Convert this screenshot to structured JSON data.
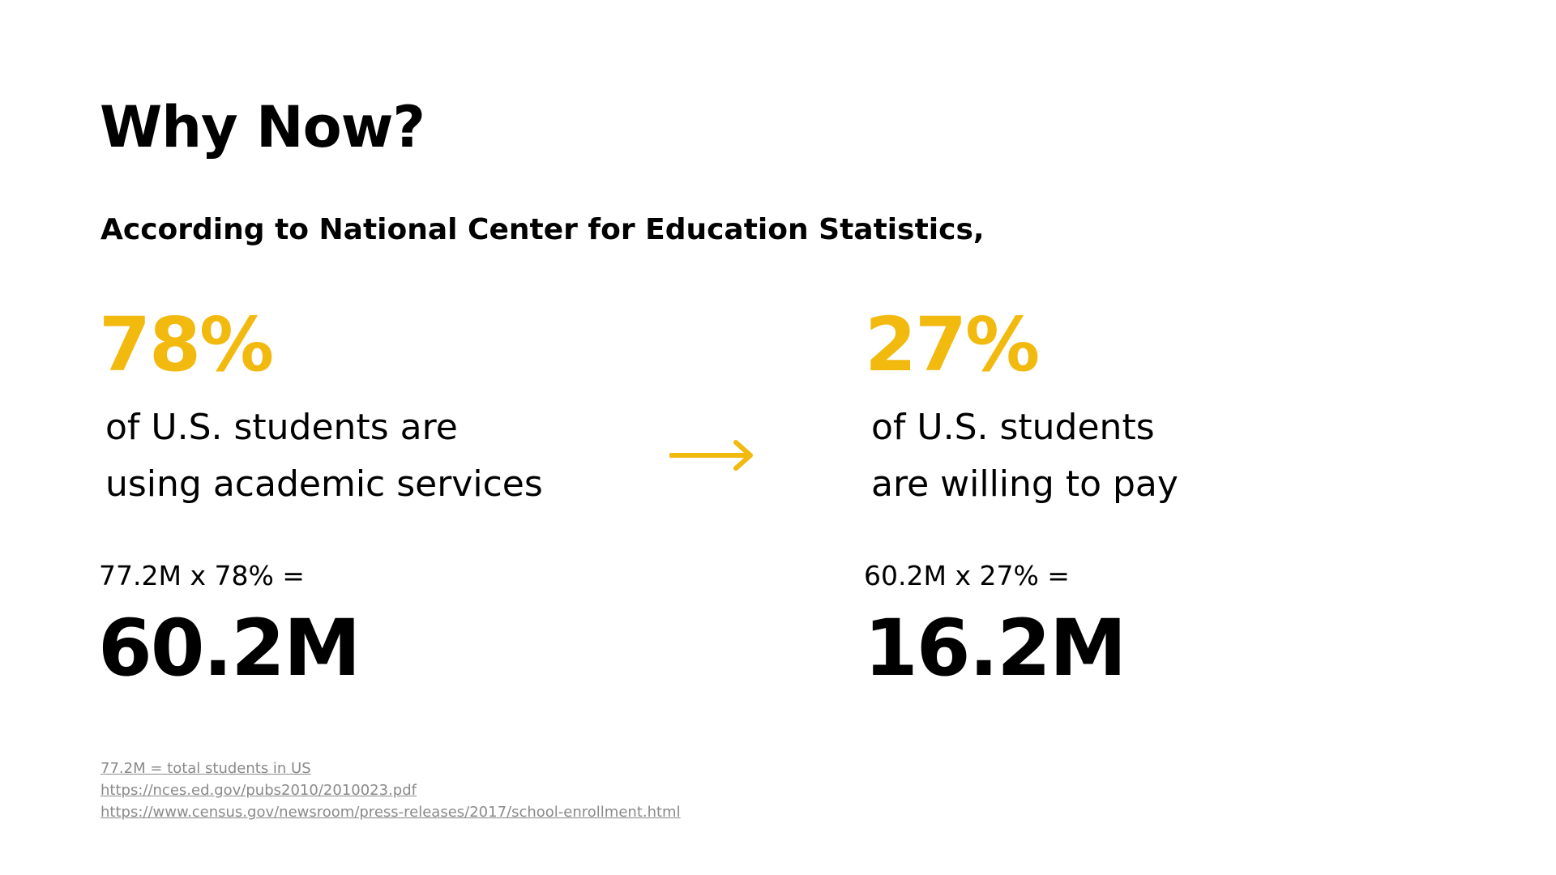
{
  "slide": {
    "title": "Why Now?",
    "subtitle": "According to National Center for Education Statistics,",
    "left": {
      "percent": "78%",
      "desc_line1": "of U.S. students are",
      "desc_line2": "using academic services",
      "formula": "77.2M x 78% =",
      "result": "60.2M"
    },
    "right": {
      "percent": "27%",
      "desc_line1": "of U.S. students",
      "desc_line2": "are willing to pay",
      "formula": "60.2M x 27% =",
      "result": "16.2M"
    },
    "arrow_icon": "arrow-right-icon",
    "accent_color": "#f2b90f",
    "footnotes": [
      "77.2M = total students in US",
      "https://nces.ed.gov/pubs2010/2010023.pdf",
      "https://www.census.gov/newsroom/press-releases/2017/school-enrollment.html"
    ]
  }
}
